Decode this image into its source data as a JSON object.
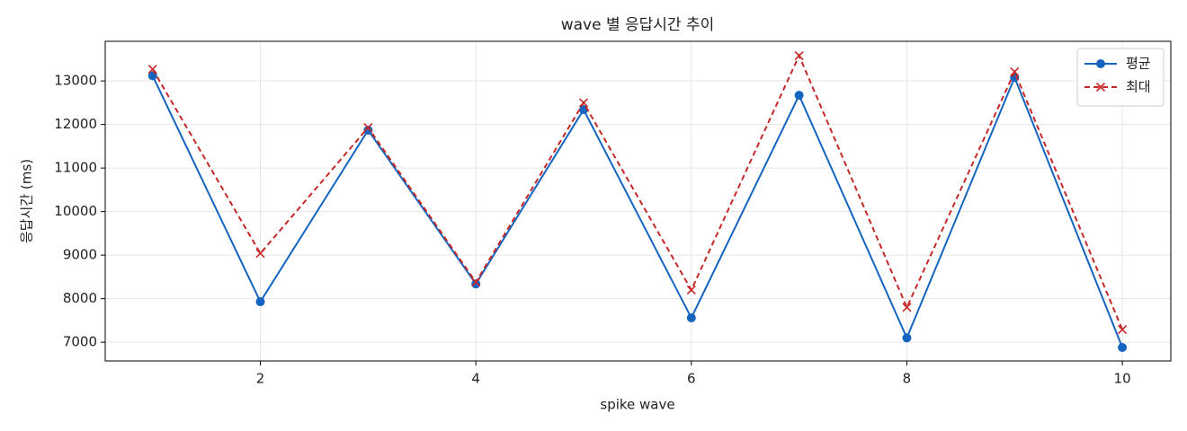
{
  "chart_data": {
    "type": "line",
    "title": "wave 별 응답시간 추이",
    "x_label": "spike wave",
    "y_label": "응답시간 (ms)",
    "x": [
      1,
      2,
      3,
      4,
      5,
      6,
      7,
      8,
      9,
      10
    ],
    "series": [
      {
        "name": "평균",
        "color": "#1565c0",
        "marker": "o",
        "linestyle": "solid",
        "values": [
          13120,
          7930,
          11870,
          8340,
          12340,
          7560,
          12670,
          7100,
          13080,
          6880
        ]
      },
      {
        "name": "최대",
        "color": "#c62828",
        "marker": "x",
        "linestyle": "dashed",
        "values": [
          13270,
          9040,
          11930,
          8380,
          12500,
          8200,
          13580,
          7800,
          13210,
          7290
        ]
      }
    ],
    "xlim": [
      0.56,
      10.45
    ],
    "ylim": [
      6570,
      13910
    ],
    "xticks": [
      2,
      4,
      6,
      8,
      10
    ],
    "yticks": [
      7000,
      8000,
      9000,
      10000,
      11000,
      12000,
      13000
    ],
    "grid": true,
    "legend": "upper right"
  }
}
